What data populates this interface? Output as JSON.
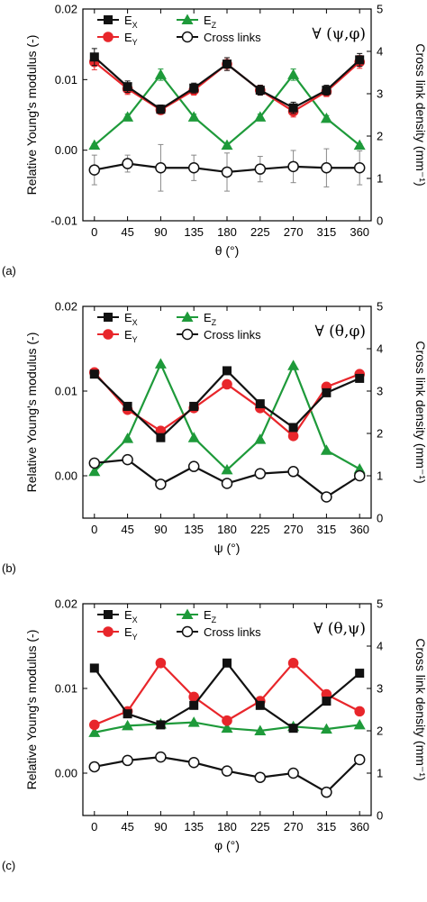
{
  "chart_data": [
    {
      "type": "line",
      "panel_label": "(a)",
      "quantifier": "∀ (ψ,φ)",
      "xlabel": "θ (°)",
      "ylabel": "Relative Young's modulus (-)",
      "y2label": "Cross link density (mm⁻¹)",
      "x": [
        0,
        45,
        90,
        135,
        180,
        225,
        270,
        315,
        360
      ],
      "x_ticks": [
        "0",
        "45",
        "90",
        "135",
        "180",
        "225",
        "270",
        "315",
        "360"
      ],
      "ylim": [
        -0.01,
        0.02
      ],
      "y_ticks": [
        "-0.01",
        "0.00",
        "0.01",
        "0.02"
      ],
      "y2lim": [
        0,
        5
      ],
      "y2_ticks": [
        "0",
        "1",
        "2",
        "3",
        "4",
        "5"
      ],
      "series": [
        {
          "name": "EX",
          "label_main": "E",
          "label_sub": "X",
          "color": "#111111",
          "marker": "square",
          "axis": "left",
          "values": [
            0.0132,
            0.009,
            0.0058,
            0.0088,
            0.0122,
            0.0085,
            0.006,
            0.0085,
            0.0128
          ],
          "errors": [
            0.0012,
            0.0008,
            0.0006,
            0.0007,
            0.0009,
            0.0007,
            0.0008,
            0.0007,
            0.0009
          ]
        },
        {
          "name": "EY",
          "label_main": "E",
          "label_sub": "Y",
          "color": "#e8262b",
          "marker": "circle",
          "axis": "left",
          "values": [
            0.0125,
            0.0087,
            0.0057,
            0.0085,
            0.0122,
            0.0085,
            0.0055,
            0.0083,
            0.0125
          ],
          "errors": [
            0.0011,
            0.0008,
            0.0006,
            0.0007,
            0.0009,
            0.0007,
            0.0008,
            0.0007,
            0.0009
          ]
        },
        {
          "name": "EZ",
          "label_main": "E",
          "label_sub": "Z",
          "color": "#1e9a3a",
          "marker": "triangle",
          "axis": "left",
          "values": [
            0.0007,
            0.0047,
            0.0107,
            0.0047,
            0.0007,
            0.0047,
            0.0107,
            0.0045,
            0.0007
          ],
          "errors": [
            0.0002,
            0.0004,
            0.0008,
            0.0004,
            0.0002,
            0.0004,
            0.0008,
            0.0004,
            0.0002
          ]
        },
        {
          "name": "Cross links",
          "color": "#111111",
          "marker": "open-circle",
          "axis": "right",
          "values": [
            1.2,
            1.35,
            1.25,
            1.25,
            1.15,
            1.22,
            1.28,
            1.25,
            1.25
          ],
          "errors": [
            0.35,
            0.2,
            0.55,
            0.3,
            0.45,
            0.3,
            0.38,
            0.45,
            0.4
          ]
        }
      ]
    },
    {
      "type": "line",
      "panel_label": "(b)",
      "quantifier": "∀ (θ,φ)",
      "xlabel": "ψ (°)",
      "ylabel": "Relative Young's modulus (-)",
      "y2label": "Cross link density (mm⁻¹)",
      "x": [
        0,
        45,
        90,
        135,
        180,
        225,
        270,
        315,
        360
      ],
      "x_ticks": [
        "0",
        "45",
        "90",
        "135",
        "180",
        "225",
        "270",
        "315",
        "360"
      ],
      "ylim": [
        -0.005,
        0.02
      ],
      "y_ticks": [
        "0.00",
        "0.01",
        "0.02"
      ],
      "y2lim": [
        0,
        5
      ],
      "y2_ticks": [
        "0",
        "1",
        "2",
        "3",
        "4",
        "5"
      ],
      "series": [
        {
          "name": "EX",
          "label_main": "E",
          "label_sub": "X",
          "color": "#111111",
          "marker": "square",
          "axis": "left",
          "values": [
            0.012,
            0.0082,
            0.0045,
            0.0082,
            0.0124,
            0.0085,
            0.0057,
            0.0098,
            0.0115
          ]
        },
        {
          "name": "EY",
          "label_main": "E",
          "label_sub": "Y",
          "color": "#e8262b",
          "marker": "circle",
          "axis": "left",
          "values": [
            0.0122,
            0.0078,
            0.0053,
            0.008,
            0.0108,
            0.008,
            0.0047,
            0.0105,
            0.012
          ]
        },
        {
          "name": "EZ",
          "label_main": "E",
          "label_sub": "Z",
          "color": "#1e9a3a",
          "marker": "triangle",
          "axis": "left",
          "values": [
            0.0005,
            0.0044,
            0.0132,
            0.0045,
            0.0007,
            0.0043,
            0.013,
            0.003,
            0.0008
          ]
        },
        {
          "name": "Cross links",
          "color": "#111111",
          "marker": "open-circle",
          "axis": "right",
          "values": [
            1.3,
            1.38,
            0.8,
            1.22,
            0.82,
            1.05,
            1.1,
            0.5,
            1.0
          ]
        }
      ]
    },
    {
      "type": "line",
      "panel_label": "(c)",
      "quantifier": "∀ (θ,ψ)",
      "xlabel": "φ (°)",
      "ylabel": "Relative Young's modulus (-)",
      "y2label": "Cross link density (mm⁻¹)",
      "x": [
        0,
        45,
        90,
        135,
        180,
        225,
        270,
        315,
        360
      ],
      "x_ticks": [
        "0",
        "45",
        "90",
        "135",
        "180",
        "225",
        "270",
        "315",
        "360"
      ],
      "ylim": [
        -0.005,
        0.02
      ],
      "y_ticks": [
        "0.00",
        "0.01",
        "0.02"
      ],
      "y2lim": [
        0,
        5
      ],
      "y2_ticks": [
        "0",
        "1",
        "2",
        "3",
        "4",
        "5"
      ],
      "series": [
        {
          "name": "EX",
          "label_main": "E",
          "label_sub": "X",
          "color": "#111111",
          "marker": "square",
          "axis": "left",
          "values": [
            0.0124,
            0.007,
            0.0057,
            0.008,
            0.013,
            0.008,
            0.0053,
            0.0085,
            0.0118
          ]
        },
        {
          "name": "EY",
          "label_main": "E",
          "label_sub": "Y",
          "color": "#e8262b",
          "marker": "circle",
          "axis": "left",
          "values": [
            0.0057,
            0.0073,
            0.013,
            0.009,
            0.0062,
            0.0085,
            0.013,
            0.0093,
            0.0073
          ]
        },
        {
          "name": "EZ",
          "label_main": "E",
          "label_sub": "Z",
          "color": "#1e9a3a",
          "marker": "triangle",
          "axis": "left",
          "values": [
            0.0048,
            0.0056,
            0.0058,
            0.006,
            0.0053,
            0.005,
            0.0055,
            0.0052,
            0.0057
          ]
        },
        {
          "name": "Cross links",
          "color": "#111111",
          "marker": "open-circle",
          "axis": "right",
          "values": [
            1.15,
            1.3,
            1.38,
            1.25,
            1.05,
            0.9,
            1.0,
            0.55,
            1.32
          ]
        }
      ]
    }
  ]
}
